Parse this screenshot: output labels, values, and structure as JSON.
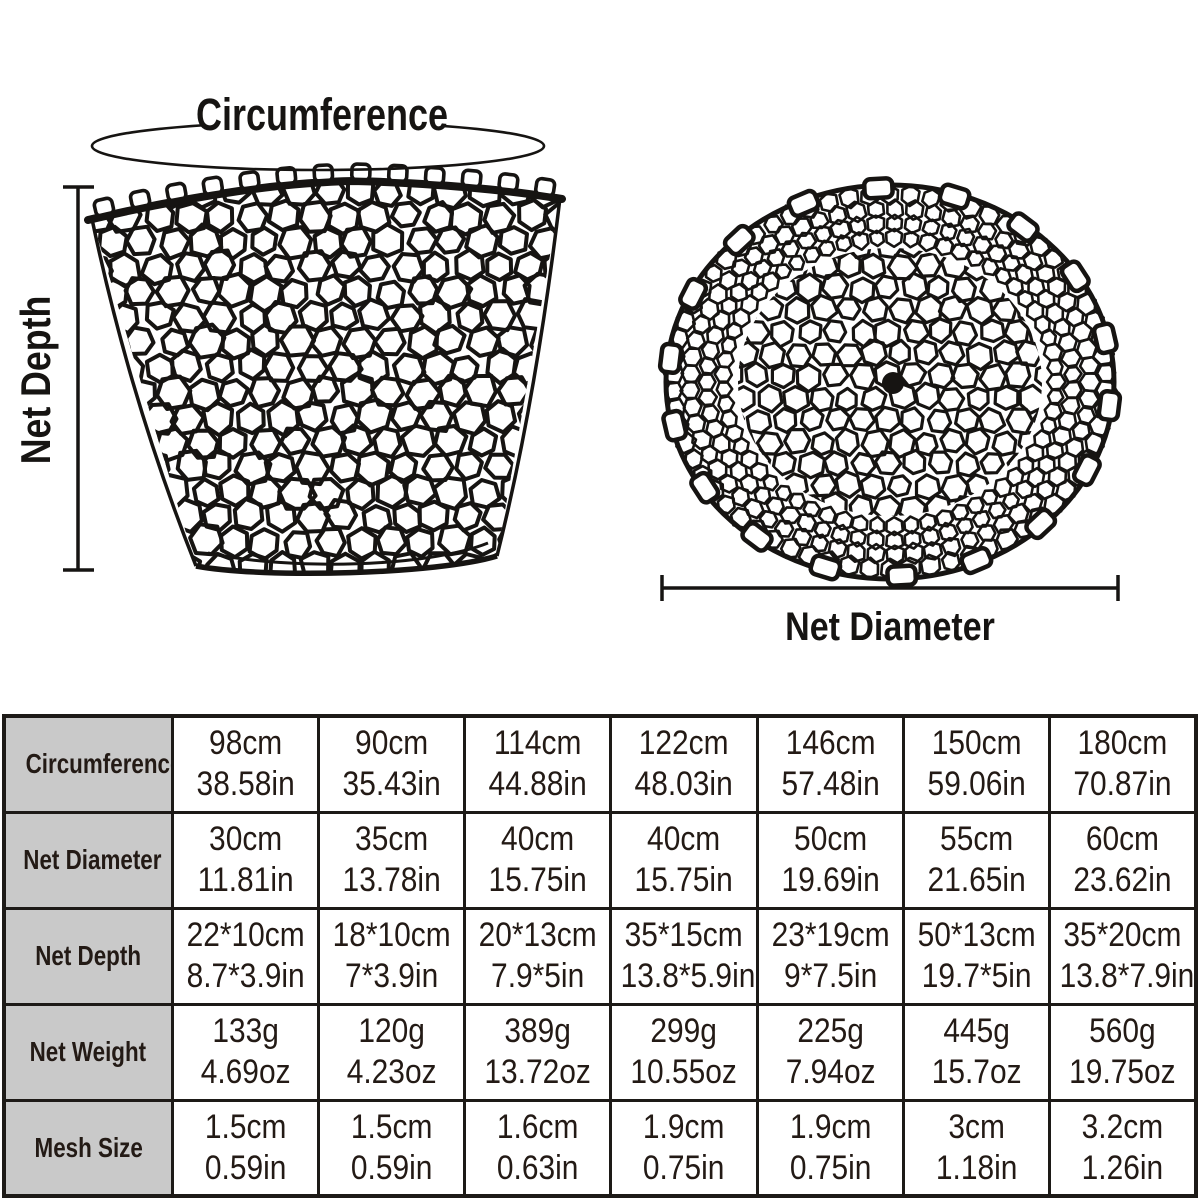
{
  "diagram": {
    "circumference_label": "Circumference",
    "net_depth_label": "Net Depth",
    "net_diameter_label": "Net Diameter"
  },
  "colors": {
    "background": "#ffffff",
    "ink": "#161412",
    "table_border": "#1d1a17",
    "table_text": "#231a15",
    "header_bg": "#c9c9c9"
  },
  "table": {
    "rows": [
      {
        "label": "Circumference",
        "values": [
          {
            "metric": "98cm",
            "imperial": "38.58in"
          },
          {
            "metric": "90cm",
            "imperial": "35.43in"
          },
          {
            "metric": "114cm",
            "imperial": "44.88in"
          },
          {
            "metric": "122cm",
            "imperial": "48.03in"
          },
          {
            "metric": "146cm",
            "imperial": "57.48in"
          },
          {
            "metric": "150cm",
            "imperial": "59.06in"
          },
          {
            "metric": "180cm",
            "imperial": "70.87in"
          }
        ]
      },
      {
        "label": "Net Diameter",
        "values": [
          {
            "metric": "30cm",
            "imperial": "11.81in"
          },
          {
            "metric": "35cm",
            "imperial": "13.78in"
          },
          {
            "metric": "40cm",
            "imperial": "15.75in"
          },
          {
            "metric": "40cm",
            "imperial": "15.75in"
          },
          {
            "metric": "50cm",
            "imperial": "19.69in"
          },
          {
            "metric": "55cm",
            "imperial": "21.65in"
          },
          {
            "metric": "60cm",
            "imperial": "23.62in"
          }
        ]
      },
      {
        "label": "Net Depth",
        "values": [
          {
            "metric": "22*10cm",
            "imperial": "8.7*3.9in"
          },
          {
            "metric": "18*10cm",
            "imperial": "7*3.9in"
          },
          {
            "metric": "20*13cm",
            "imperial": "7.9*5in"
          },
          {
            "metric": "35*15cm",
            "imperial": "13.8*5.9in"
          },
          {
            "metric": "23*19cm",
            "imperial": "9*7.5in"
          },
          {
            "metric": "50*13cm",
            "imperial": "19.7*5in"
          },
          {
            "metric": "35*20cm",
            "imperial": "13.8*7.9in"
          }
        ]
      },
      {
        "label": "Net Weight",
        "values": [
          {
            "metric": "133g",
            "imperial": "4.69oz"
          },
          {
            "metric": "120g",
            "imperial": "4.23oz"
          },
          {
            "metric": "389g",
            "imperial": "13.72oz"
          },
          {
            "metric": "299g",
            "imperial": "10.55oz"
          },
          {
            "metric": "225g",
            "imperial": "7.94oz"
          },
          {
            "metric": "445g",
            "imperial": "15.7oz"
          },
          {
            "metric": "560g",
            "imperial": "19.75oz"
          }
        ]
      },
      {
        "label": "Mesh Size",
        "values": [
          {
            "metric": "1.5cm",
            "imperial": "0.59in"
          },
          {
            "metric": "1.5cm",
            "imperial": "0.59in"
          },
          {
            "metric": "1.6cm",
            "imperial": "0.63in"
          },
          {
            "metric": "1.9cm",
            "imperial": "0.75in"
          },
          {
            "metric": "1.9cm",
            "imperial": "0.75in"
          },
          {
            "metric": "3cm",
            "imperial": "1.18in"
          },
          {
            "metric": "3.2cm",
            "imperial": "1.26in"
          }
        ]
      }
    ]
  }
}
